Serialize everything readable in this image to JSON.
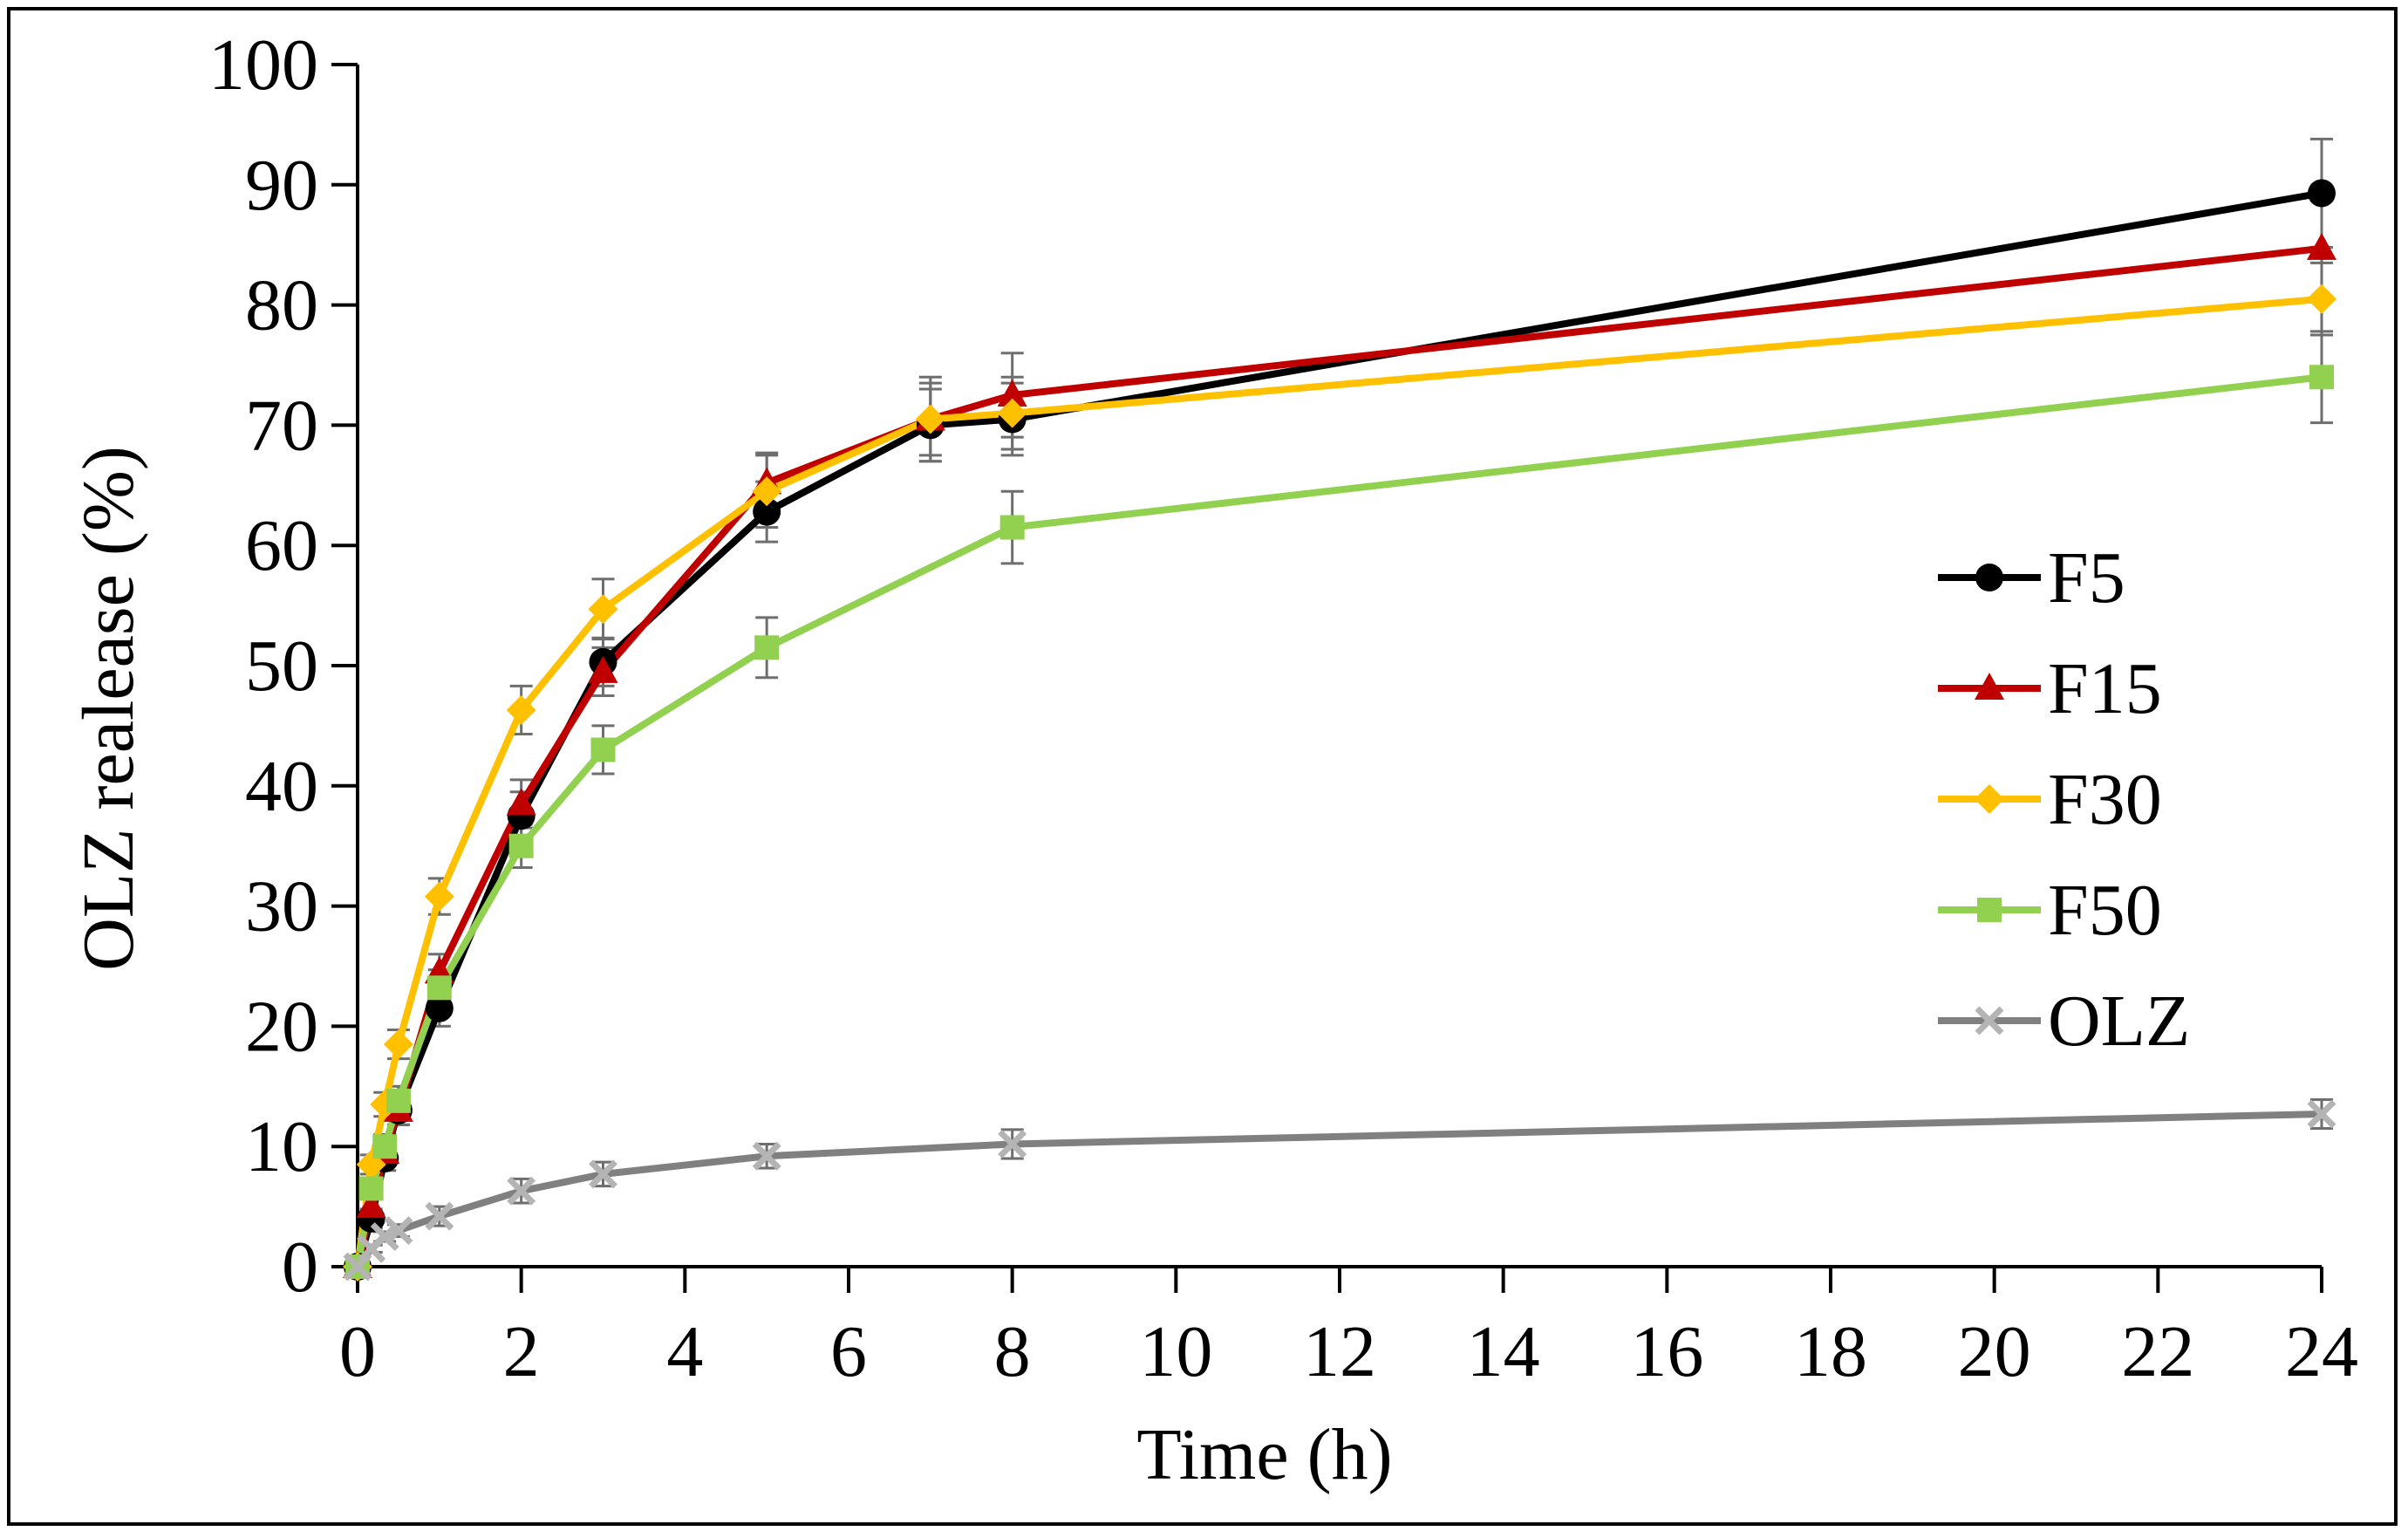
{
  "chart_data": {
    "type": "line",
    "title": "",
    "xlabel": "Time (h)",
    "ylabel": "OLZ realease (%)",
    "xlim": [
      0,
      24
    ],
    "ylim": [
      0,
      100
    ],
    "xticks": [
      0,
      2,
      4,
      6,
      8,
      10,
      12,
      14,
      16,
      18,
      20,
      22,
      24
    ],
    "yticks": [
      0,
      10,
      20,
      30,
      40,
      50,
      60,
      70,
      80,
      90,
      100
    ],
    "grid": false,
    "legend_position": "center-right",
    "series": [
      {
        "name": "F5",
        "color": "#000000",
        "marker": "circle",
        "x": [
          0,
          0.167,
          0.333,
          0.5,
          1,
          2,
          3,
          5,
          7,
          8,
          24
        ],
        "y": [
          0,
          4,
          9,
          13,
          21.5,
          37.5,
          50.3,
          62.8,
          70,
          70.5,
          89.3
        ],
        "err": [
          0,
          0.8,
          1.0,
          1.2,
          1.5,
          2.0,
          2.0,
          2.5,
          3.0,
          3.0,
          4.5
        ]
      },
      {
        "name": "F15",
        "color": "#c00000",
        "marker": "triangle",
        "x": [
          0,
          0.167,
          0.333,
          0.5,
          1,
          2,
          3,
          5,
          7,
          8,
          24
        ],
        "y": [
          0,
          5,
          9.5,
          13,
          24.5,
          38.5,
          49.5,
          65.2,
          70.5,
          72.5,
          84.7
        ],
        "err": [
          0,
          0.8,
          1.0,
          1.2,
          1.5,
          2.0,
          2.0,
          2.5,
          3.0,
          3.5,
          4.0
        ]
      },
      {
        "name": "F30",
        "color": "#ffc000",
        "marker": "diamond",
        "x": [
          0,
          0.167,
          0.333,
          0.5,
          1,
          2,
          3,
          5,
          7,
          8,
          24
        ],
        "y": [
          0,
          8.5,
          13.5,
          18.5,
          30.8,
          46.3,
          54.7,
          64.5,
          70.5,
          71,
          80.5
        ],
        "err": [
          0,
          0.8,
          1.0,
          1.2,
          1.5,
          2.0,
          2.5,
          3.0,
          3.5,
          3.0,
          3.0
        ]
      },
      {
        "name": "F50",
        "color": "#92d050",
        "marker": "square",
        "x": [
          0,
          0.167,
          0.333,
          0.5,
          1,
          2,
          3,
          5,
          8,
          24
        ],
        "y": [
          0,
          6.5,
          10,
          13.8,
          23.2,
          35,
          43,
          51.5,
          61.5,
          74
        ],
        "err": [
          0,
          0.8,
          1.0,
          1.2,
          1.5,
          1.8,
          2.0,
          2.5,
          3.0,
          3.8
        ]
      },
      {
        "name": "OLZ",
        "color": "#808080",
        "marker": "x",
        "x": [
          0,
          0.167,
          0.333,
          0.5,
          1,
          2,
          3,
          5,
          8,
          24
        ],
        "y": [
          0,
          1.5,
          2.5,
          3,
          4.2,
          6.3,
          7.7,
          9.2,
          10.2,
          12.7
        ],
        "err": [
          0,
          0.3,
          0.4,
          0.5,
          0.8,
          1.0,
          1.0,
          1.0,
          1.2,
          1.2
        ]
      }
    ]
  }
}
